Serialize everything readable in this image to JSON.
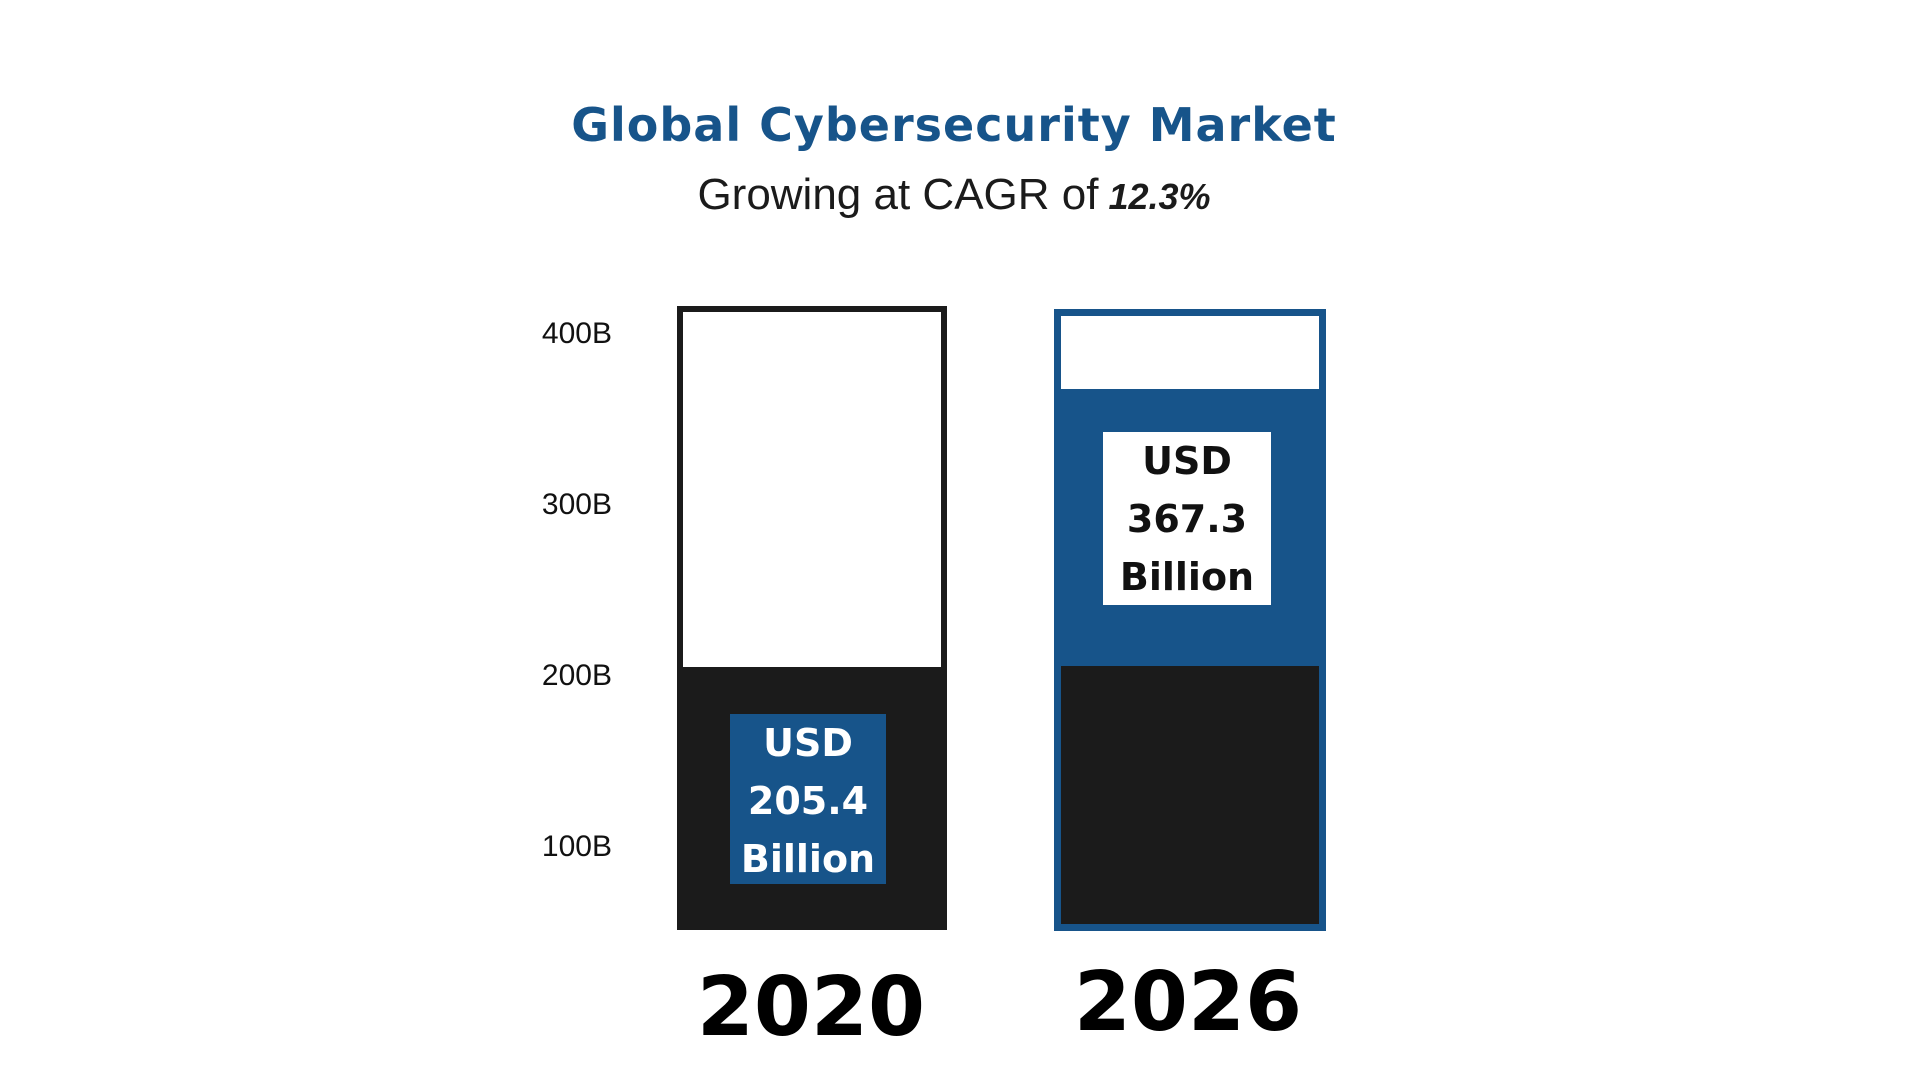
{
  "chart_data": {
    "type": "bar",
    "title": "Global Cybersecurity Market",
    "subtitle": "Growing at CAGR of",
    "cagr": "12.3%",
    "categories": [
      "2020",
      "2026"
    ],
    "values": [
      205.4,
      367.3
    ],
    "data_labels": [
      {
        "currency": "USD",
        "value": "205.4",
        "unit": "Billion"
      },
      {
        "currency": "USD",
        "value": "367.3",
        "unit": "Billion"
      }
    ],
    "y_ticks": [
      {
        "value": 100,
        "label": "100B"
      },
      {
        "value": 200,
        "label": "200B"
      },
      {
        "value": 300,
        "label": "300B"
      },
      {
        "value": 400,
        "label": "400B"
      }
    ],
    "ylim": [
      60,
      420
    ],
    "grid": false,
    "colors": {
      "blue": "#17548a",
      "black": "#1b1b1b",
      "white": "#ffffff"
    }
  }
}
